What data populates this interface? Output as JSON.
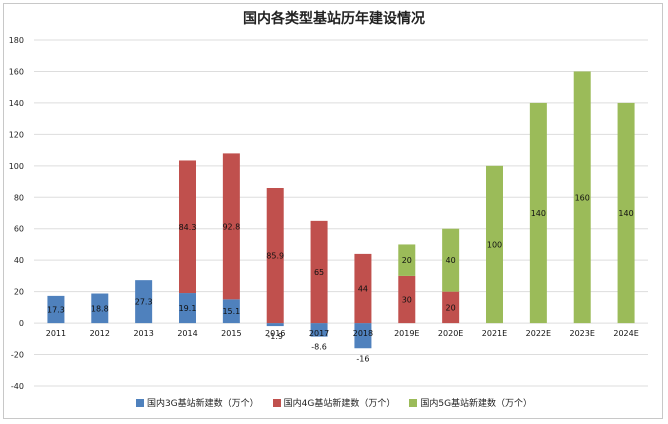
{
  "chart_data": {
    "type": "bar",
    "stacked": true,
    "title": "国内各类型基站历年建设情况",
    "xlabel": "",
    "ylabel": "",
    "ylim": [
      -40,
      180
    ],
    "yticks": [
      -40,
      -20,
      0,
      20,
      40,
      60,
      80,
      100,
      120,
      140,
      160,
      180
    ],
    "grid": true,
    "legend_position": "bottom",
    "categories": [
      "2011",
      "2012",
      "2013",
      "2014",
      "2015",
      "2016",
      "2017",
      "2018",
      "2019E",
      "2020E",
      "2021E",
      "2022E",
      "2023E",
      "2024E"
    ],
    "series": [
      {
        "name": "国内3G基站新建数（万个）",
        "color": "#4f81bd",
        "values": [
          17.3,
          18.8,
          27.3,
          19.1,
          15.1,
          -1.9,
          -8.6,
          -16,
          null,
          null,
          null,
          null,
          null,
          null
        ],
        "labels": [
          "17.3",
          "18.8",
          "27.3",
          "19.1",
          "15.1",
          "-1.9",
          "-8.6",
          "-16",
          "",
          "",
          "",
          "",
          "",
          ""
        ]
      },
      {
        "name": "国内4G基站新建数（万个）",
        "color": "#c0504d",
        "values": [
          null,
          null,
          null,
          84.3,
          92.8,
          85.9,
          65,
          44,
          30,
          20,
          null,
          null,
          null,
          null
        ],
        "labels": [
          "",
          "",
          "",
          "84.3",
          "92.8",
          "85.9",
          "65",
          "44",
          "30",
          "20",
          "",
          "",
          "",
          ""
        ]
      },
      {
        "name": "国内5G基站新建数（万个）",
        "color": "#9bbb59",
        "values": [
          null,
          null,
          null,
          null,
          null,
          null,
          null,
          null,
          20,
          40,
          100,
          140,
          160,
          140
        ],
        "labels": [
          "",
          "",
          "",
          "",
          "",
          "",
          "",
          "",
          "20",
          "40",
          "100",
          "140",
          "160",
          "140"
        ]
      }
    ]
  }
}
